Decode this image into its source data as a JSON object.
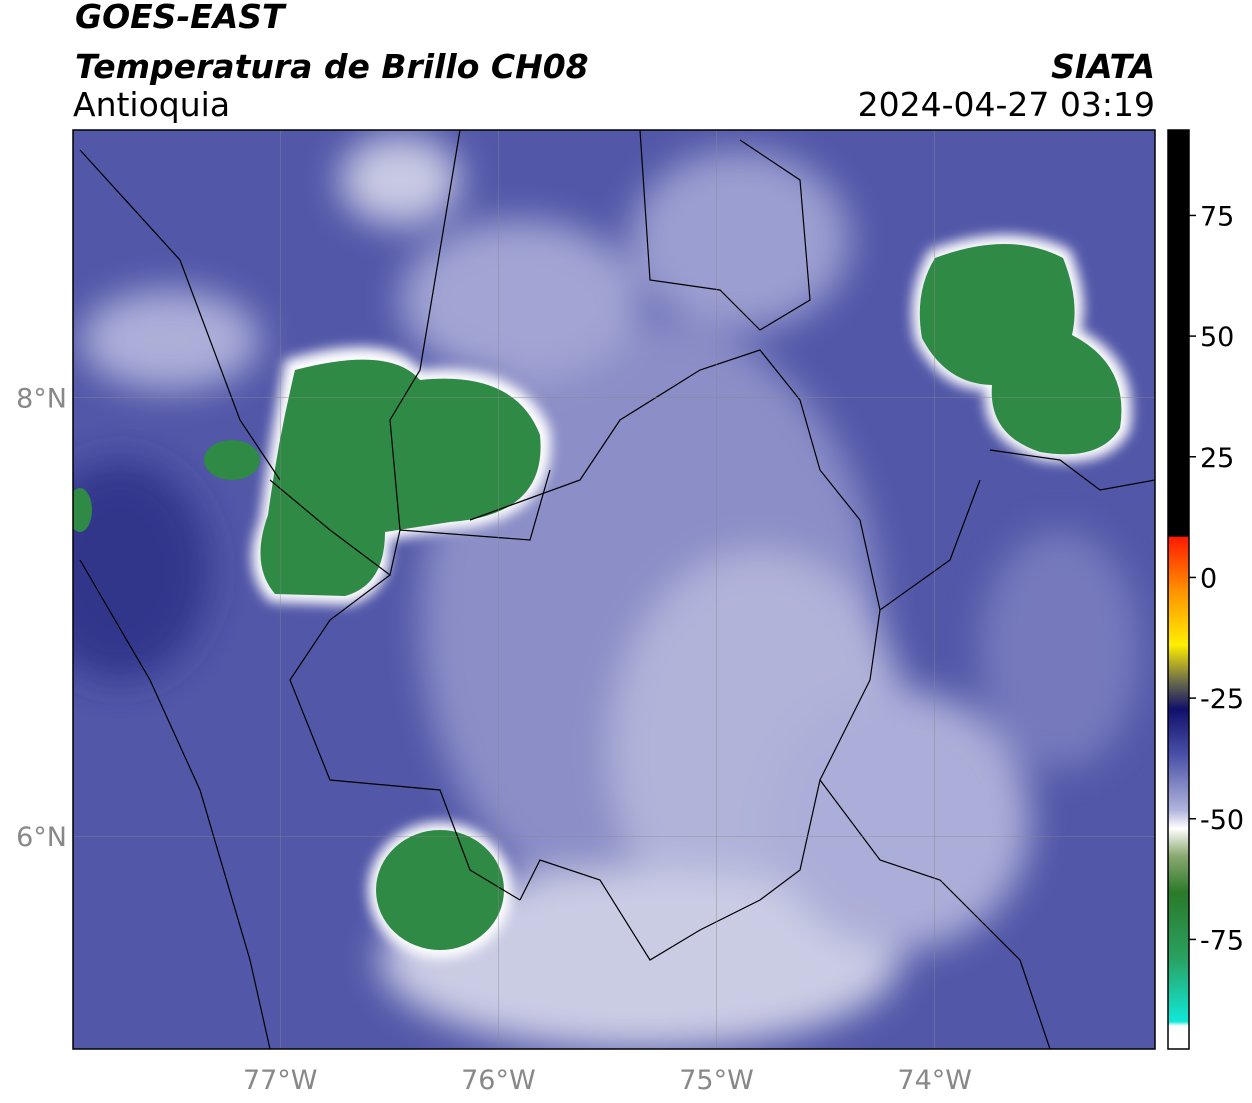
{
  "header": {
    "title": "GOES-EAST",
    "subtitle": "Temperatura de Brillo CH08",
    "region": "Antioquia",
    "source": "SIATA",
    "datetime": "2024-04-27 03:19"
  },
  "map": {
    "xlim": [
      -77.95,
      -72.99
    ],
    "ylim": [
      5.03,
      9.22
    ],
    "xticks": [
      {
        "value": -77,
        "label": "77°W"
      },
      {
        "value": -76,
        "label": "76°W"
      },
      {
        "value": -75,
        "label": "75°W"
      },
      {
        "value": -74,
        "label": "74°W"
      }
    ],
    "yticks": [
      {
        "value": 8,
        "label": "8°N"
      },
      {
        "value": 6,
        "label": "6°N"
      }
    ],
    "grid": true
  },
  "colorbar": {
    "lim": [
      -97.7,
      92.7
    ],
    "ticks": [
      75,
      50,
      25,
      0,
      -25,
      -50,
      -75
    ]
  }
}
